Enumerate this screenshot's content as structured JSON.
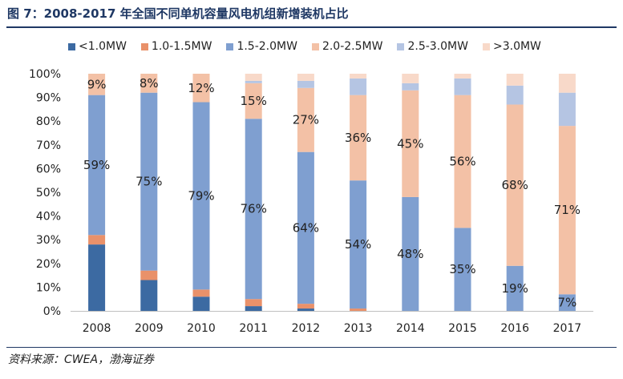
{
  "title": "图 7：2008-2017 年全国不同单机容量风电机组新增装机占比",
  "source": "资料来源：CWEA，渤海证券",
  "chart_data": {
    "type": "bar",
    "stacked": true,
    "categories": [
      "2008",
      "2009",
      "2010",
      "2011",
      "2012",
      "2013",
      "2014",
      "2015",
      "2016",
      "2017"
    ],
    "ylim": [
      0,
      100
    ],
    "yticks": [
      "0%",
      "10%",
      "20%",
      "30%",
      "40%",
      "50%",
      "60%",
      "70%",
      "80%",
      "90%",
      "100%"
    ],
    "legend_position": "top",
    "series": [
      {
        "name": "<1.0MW",
        "color": "#3c6aa2",
        "values": [
          28,
          13,
          6,
          2,
          1,
          0,
          0,
          0,
          0,
          0
        ]
      },
      {
        "name": "1.0-1.5MW",
        "color": "#e9916a",
        "values": [
          4,
          4,
          3,
          3,
          2,
          1,
          0,
          0,
          0,
          0
        ]
      },
      {
        "name": "1.5-2.0MW",
        "color": "#7f9fd0",
        "values": [
          59,
          75,
          79,
          76,
          64,
          54,
          48,
          35,
          19,
          7
        ]
      },
      {
        "name": "2.0-2.5MW",
        "color": "#f3c1a6",
        "values": [
          9,
          8,
          12,
          15,
          27,
          36,
          45,
          56,
          68,
          71
        ]
      },
      {
        "name": "2.5-3.0MW",
        "color": "#b5c5e3",
        "values": [
          0,
          0,
          0,
          1,
          3,
          7,
          3,
          7,
          8,
          14
        ]
      },
      {
        "name": ">3.0MW",
        "color": "#f8d9c9",
        "values": [
          0,
          0,
          0,
          3,
          3,
          2,
          4,
          2,
          5,
          8
        ]
      }
    ],
    "data_labels": [
      {
        "category": "2008",
        "series": "1.5-2.0MW",
        "text": "59%"
      },
      {
        "category": "2008",
        "series": "2.0-2.5MW",
        "text": "9%"
      },
      {
        "category": "2009",
        "series": "1.5-2.0MW",
        "text": "75%"
      },
      {
        "category": "2009",
        "series": "2.0-2.5MW",
        "text": "8%"
      },
      {
        "category": "2010",
        "series": "1.5-2.0MW",
        "text": "79%"
      },
      {
        "category": "2010",
        "series": "2.0-2.5MW",
        "text": "12%"
      },
      {
        "category": "2011",
        "series": "1.5-2.0MW",
        "text": "76%"
      },
      {
        "category": "2011",
        "series": "2.0-2.5MW",
        "text": "15%"
      },
      {
        "category": "2012",
        "series": "1.5-2.0MW",
        "text": "64%"
      },
      {
        "category": "2012",
        "series": "2.0-2.5MW",
        "text": "27%"
      },
      {
        "category": "2013",
        "series": "1.5-2.0MW",
        "text": "54%"
      },
      {
        "category": "2013",
        "series": "2.0-2.5MW",
        "text": "36%"
      },
      {
        "category": "2014",
        "series": "1.5-2.0MW",
        "text": "48%"
      },
      {
        "category": "2014",
        "series": "2.0-2.5MW",
        "text": "45%"
      },
      {
        "category": "2015",
        "series": "1.5-2.0MW",
        "text": "35%"
      },
      {
        "category": "2015",
        "series": "2.0-2.5MW",
        "text": "56%"
      },
      {
        "category": "2016",
        "series": "1.5-2.0MW",
        "text": "19%"
      },
      {
        "category": "2016",
        "series": "2.0-2.5MW",
        "text": "68%"
      },
      {
        "category": "2017",
        "series": "1.5-2.0MW",
        "text": "7%"
      },
      {
        "category": "2017",
        "series": "2.0-2.5MW",
        "text": "71%"
      }
    ]
  }
}
